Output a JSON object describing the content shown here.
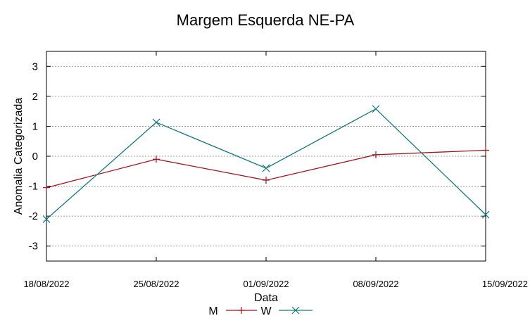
{
  "chart_data": {
    "type": "line",
    "title": "Margem Esquerda NE-PA",
    "xlabel": "Data",
    "ylabel": "Anomalia Categorizada",
    "categories": [
      "18/08/2022",
      "25/08/2022",
      "01/09/2022",
      "08/09/2022",
      "15/09/2022"
    ],
    "yticks": [
      "3",
      "2",
      "1",
      "0",
      "-1",
      "-2",
      "-3"
    ],
    "ylim": [
      -3.5,
      3.5
    ],
    "grid": true,
    "legend_position": "bottom-center",
    "series": [
      {
        "name": "M",
        "color": "#a0141e",
        "marker": "+",
        "values": [
          -1.05,
          -0.1,
          -0.8,
          0.05,
          0.2
        ]
      },
      {
        "name": "W",
        "color": "#137a7f",
        "marker": "x",
        "values": [
          -2.1,
          1.13,
          -0.4,
          1.58,
          -1.95
        ]
      }
    ]
  }
}
